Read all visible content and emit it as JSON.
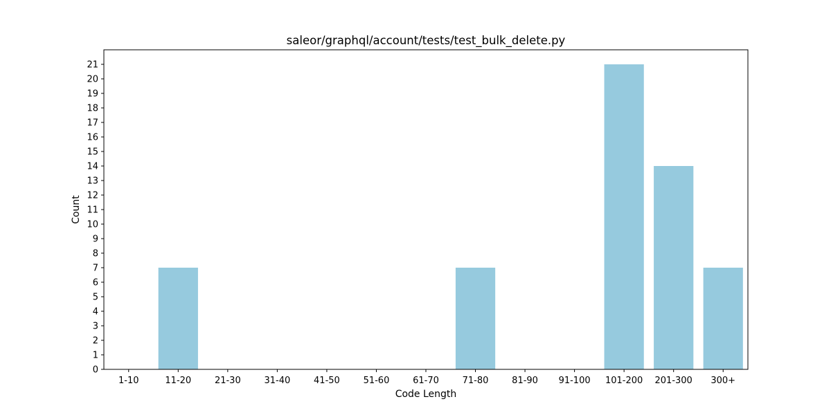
{
  "chart_data": {
    "type": "bar",
    "title": "saleor/graphql/account/tests/test_bulk_delete.py",
    "xlabel": "Code Length",
    "ylabel": "Count",
    "categories": [
      "1-10",
      "11-20",
      "21-30",
      "31-40",
      "41-50",
      "51-60",
      "61-70",
      "71-80",
      "81-90",
      "91-100",
      "101-200",
      "201-300",
      "300+"
    ],
    "values": [
      0,
      7,
      0,
      0,
      0,
      0,
      0,
      7,
      0,
      0,
      21,
      14,
      7
    ],
    "ylim": [
      0,
      22
    ],
    "yticks": [
      0,
      1,
      2,
      3,
      4,
      5,
      6,
      7,
      8,
      9,
      10,
      11,
      12,
      13,
      14,
      15,
      16,
      17,
      18,
      19,
      20,
      21
    ],
    "bar_color": "#96cade",
    "grid": false,
    "legend": false
  }
}
